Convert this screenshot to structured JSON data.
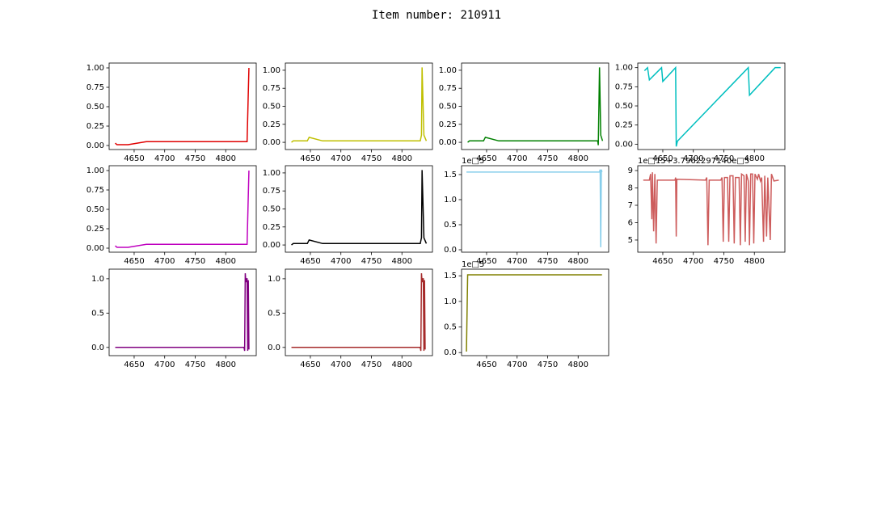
{
  "title": "Item number: 210911",
  "chart_data": [
    {
      "type": "line",
      "color": "#e00000",
      "xlim": [
        4609,
        4850
      ],
      "ylim": [
        -0.052,
        1.0625
      ],
      "xticks": [
        4650,
        4700,
        4750,
        4800
      ],
      "yticks": [
        {
          "value": 0,
          "label": "0.00"
        },
        {
          "value": 0.25,
          "label": "0.25"
        },
        {
          "value": 0.5,
          "label": "0.50"
        },
        {
          "value": 0.75,
          "label": "0.75"
        },
        {
          "value": 1,
          "label": "1.00"
        }
      ],
      "x": [
        4619,
        4622,
        4640,
        4670,
        4835,
        4838
      ],
      "values": [
        0.03,
        0.01,
        0.01,
        0.05,
        0.05,
        1.0
      ]
    },
    {
      "type": "line",
      "color": "#bfbf00",
      "xlim": [
        4609,
        4850
      ],
      "ylim": [
        -0.1,
        1.1
      ],
      "xticks": [
        4650,
        4700,
        4750,
        4800
      ],
      "yticks": [
        {
          "value": 0,
          "label": "0.00"
        },
        {
          "value": 0.25,
          "label": "0.25"
        },
        {
          "value": 0.5,
          "label": "0.50"
        },
        {
          "value": 0.75,
          "label": "0.75"
        },
        {
          "value": 1,
          "label": "1.00"
        }
      ],
      "x": [
        4619,
        4622,
        4645,
        4648,
        4670,
        4830,
        4832,
        4833,
        4836,
        4840
      ],
      "values": [
        0.0,
        0.02,
        0.02,
        0.07,
        0.02,
        0.02,
        0.1,
        1.04,
        0.1,
        0.02
      ]
    },
    {
      "type": "line",
      "color": "#008000",
      "xlim": [
        4609,
        4850
      ],
      "ylim": [
        -0.1,
        1.1
      ],
      "xticks": [
        4650,
        4700,
        4750,
        4800
      ],
      "yticks": [
        {
          "value": 0,
          "label": "0.00"
        },
        {
          "value": 0.25,
          "label": "0.25"
        },
        {
          "value": 0.5,
          "label": "0.50"
        },
        {
          "value": 0.75,
          "label": "0.75"
        },
        {
          "value": 1,
          "label": "1.00"
        }
      ],
      "x": [
        4619,
        4622,
        4645,
        4648,
        4670,
        4832,
        4833,
        4835,
        4837,
        4840
      ],
      "values": [
        0.0,
        0.02,
        0.02,
        0.07,
        0.02,
        0.02,
        -0.04,
        1.04,
        0.1,
        0.02
      ]
    },
    {
      "type": "line",
      "color": "#00bfbf",
      "xlim": [
        4609,
        4850
      ],
      "ylim": [
        -0.07,
        1.06
      ],
      "xticks": [
        4650,
        4700,
        4750,
        4800
      ],
      "yticks": [
        {
          "value": 0,
          "label": "0.00"
        },
        {
          "value": 0.25,
          "label": "0.25"
        },
        {
          "value": 0.5,
          "label": "0.50"
        },
        {
          "value": 0.75,
          "label": "0.75"
        },
        {
          "value": 1,
          "label": "1.00"
        }
      ],
      "x": [
        4620,
        4625,
        4628,
        4648,
        4650,
        4671,
        4672,
        4674,
        4790,
        4792,
        4834,
        4843
      ],
      "values": [
        0.96,
        1.0,
        0.84,
        1.0,
        0.82,
        1.0,
        -0.03,
        0.04,
        1.0,
        0.64,
        1.0,
        1.0
      ]
    },
    {
      "type": "line",
      "color": "#bf00bf",
      "xlim": [
        4609,
        4850
      ],
      "ylim": [
        -0.052,
        1.0625
      ],
      "xticks": [
        4650,
        4700,
        4750,
        4800
      ],
      "yticks": [
        {
          "value": 0,
          "label": "0.00"
        },
        {
          "value": 0.25,
          "label": "0.25"
        },
        {
          "value": 0.5,
          "label": "0.50"
        },
        {
          "value": 0.75,
          "label": "0.75"
        },
        {
          "value": 1,
          "label": "1.00"
        }
      ],
      "x": [
        4619,
        4622,
        4640,
        4670,
        4835,
        4838
      ],
      "values": [
        0.03,
        0.01,
        0.01,
        0.05,
        0.05,
        1.0
      ]
    },
    {
      "type": "line",
      "color": "#000000",
      "xlim": [
        4609,
        4850
      ],
      "ylim": [
        -0.1,
        1.1
      ],
      "xticks": [
        4650,
        4700,
        4750,
        4800
      ],
      "yticks": [
        {
          "value": 0,
          "label": "0.00"
        },
        {
          "value": 0.25,
          "label": "0.25"
        },
        {
          "value": 0.5,
          "label": "0.50"
        },
        {
          "value": 0.75,
          "label": "0.75"
        },
        {
          "value": 1,
          "label": "1.00"
        }
      ],
      "x": [
        4619,
        4622,
        4645,
        4648,
        4670,
        4830,
        4832,
        4833,
        4836,
        4840
      ],
      "values": [
        0.0,
        0.02,
        0.02,
        0.07,
        0.02,
        0.02,
        0.1,
        1.04,
        0.1,
        0.02
      ]
    },
    {
      "type": "line",
      "color": "#87ceeb",
      "offset_label": "1e□5",
      "xlim": [
        4609,
        4850
      ],
      "ylim": [
        -0.048,
        1.677
      ],
      "xticks": [
        4650,
        4700,
        4750,
        4800
      ],
      "yticks": [
        {
          "value": 0,
          "label": "0.0"
        },
        0.5,
        {
          "value": 1,
          "label": "1.0"
        },
        1.5
      ],
      "x": [
        4617,
        4835,
        4836,
        4837,
        4838,
        4839
      ],
      "values": [
        1.55,
        1.55,
        1.6,
        0.05,
        1.6,
        1.55
      ]
    },
    {
      "type": "line",
      "color": "#cd5c5c",
      "offset_label": "1e□15+3.7962297140e□5",
      "xlim": [
        4609,
        4850
      ],
      "ylim": [
        4.3,
        9.28
      ],
      "xticks": [
        4650,
        4700,
        4750,
        4800
      ],
      "yticks": [
        5,
        6,
        7,
        8,
        9
      ],
      "x": [
        4618,
        4628,
        4630,
        4632,
        4633,
        4635,
        4637,
        4639,
        4641,
        4670,
        4671,
        4672,
        4673,
        4720,
        4722,
        4724,
        4726,
        4745,
        4747,
        4749,
        4751,
        4756,
        4758,
        4760,
        4765,
        4767,
        4769,
        4775,
        4777,
        4779,
        4783,
        4785,
        4787,
        4790,
        4792,
        4794,
        4797,
        4799,
        4801,
        4805,
        4807,
        4810,
        4812,
        4815,
        4817,
        4820,
        4822,
        4826,
        4828,
        4832,
        4840
      ],
      "values": [
        8.45,
        8.45,
        8.8,
        6.2,
        8.9,
        5.5,
        8.8,
        4.8,
        8.45,
        8.45,
        8.6,
        5.2,
        8.5,
        8.45,
        8.6,
        4.7,
        8.45,
        8.45,
        8.6,
        4.9,
        8.6,
        8.6,
        4.9,
        8.7,
        8.7,
        4.8,
        8.6,
        8.6,
        4.7,
        8.8,
        8.7,
        4.9,
        8.8,
        8.4,
        4.7,
        8.8,
        8.8,
        4.8,
        8.8,
        8.5,
        8.8,
        8.4,
        8.6,
        4.9,
        8.7,
        5.2,
        8.6,
        5.0,
        8.8,
        8.4,
        8.45
      ]
    },
    {
      "type": "line",
      "color": "#800080",
      "xlim": [
        4609,
        4850
      ],
      "ylim": [
        -0.12,
        1.14
      ],
      "xticks": [
        4650,
        4700,
        4750,
        4800
      ],
      "yticks": [
        {
          "value": 0,
          "label": "0.0"
        },
        0.5,
        {
          "value": 1,
          "label": "1.0"
        }
      ],
      "x": [
        4619,
        4830,
        4831,
        4832,
        4833,
        4834,
        4835,
        4836,
        4837,
        4838
      ],
      "values": [
        0,
        0,
        -0.05,
        1.08,
        0.95,
        1.0,
        1.0,
        -0.05,
        0.98,
        -0.03
      ]
    },
    {
      "type": "line",
      "color": "#a52a2a",
      "xlim": [
        4609,
        4850
      ],
      "ylim": [
        -0.12,
        1.14
      ],
      "xticks": [
        4650,
        4700,
        4750,
        4800
      ],
      "yticks": [
        {
          "value": 0,
          "label": "0.0"
        },
        0.5,
        {
          "value": 1,
          "label": "1.0"
        }
      ],
      "x": [
        4619,
        4830,
        4831,
        4832,
        4833,
        4834,
        4835,
        4836,
        4837,
        4838
      ],
      "values": [
        0,
        0,
        -0.05,
        1.08,
        0.95,
        1.0,
        1.0,
        -0.05,
        0.98,
        -0.03
      ]
    },
    {
      "type": "line",
      "color": "#808000",
      "offset_label": "1e□5",
      "xlim": [
        4609,
        4850
      ],
      "ylim": [
        -0.06,
        1.63
      ],
      "xticks": [
        4650,
        4700,
        4750,
        4800
      ],
      "yticks": [
        {
          "value": 0,
          "label": "0.0"
        },
        0.5,
        {
          "value": 1,
          "label": "1.0"
        },
        1.5
      ],
      "x": [
        4617,
        4619,
        4839
      ],
      "values": [
        0.02,
        1.52,
        1.52
      ]
    }
  ]
}
